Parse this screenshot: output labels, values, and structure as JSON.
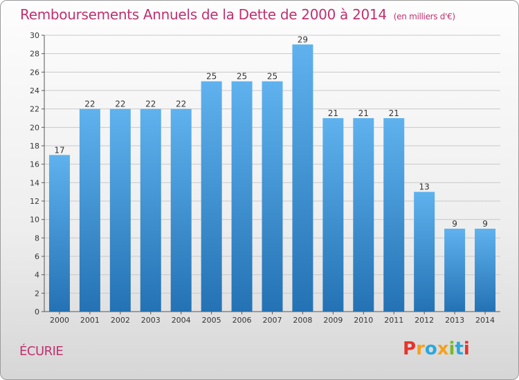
{
  "header": {
    "title": "Remboursements Annuels de la Dette de 2000 à 2014",
    "unit": "(en milliers d'€)"
  },
  "footer": {
    "commune": "ÉCURIE",
    "logo": "Proxiti"
  },
  "colors": {
    "title": "#c03070",
    "bar_top": "#5fb2ee",
    "bar_bottom": "#2472b4",
    "logo": [
      "#e8332a",
      "#f6a11a",
      "#2aa7df",
      "#f6a11a",
      "#78b829",
      "#2aa7df",
      "#e8332a"
    ]
  },
  "chart_data": {
    "type": "bar",
    "title": "Remboursements Annuels de la Dette de 2000 à 2014",
    "categories": [
      "2000",
      "2001",
      "2002",
      "2003",
      "2004",
      "2005",
      "2006",
      "2007",
      "2008",
      "2009",
      "2010",
      "2011",
      "2012",
      "2013",
      "2014"
    ],
    "values": [
      17,
      22,
      22,
      22,
      22,
      25,
      25,
      25,
      29,
      21,
      21,
      21,
      13,
      9,
      9
    ],
    "yticks": [
      "0",
      "2",
      "4",
      "6",
      "8",
      "10",
      "12",
      "14",
      "16",
      "18",
      "20",
      "22",
      "24",
      "26",
      "28",
      "30"
    ],
    "ylim": [
      0,
      30
    ],
    "grid": true,
    "legend": "none"
  }
}
